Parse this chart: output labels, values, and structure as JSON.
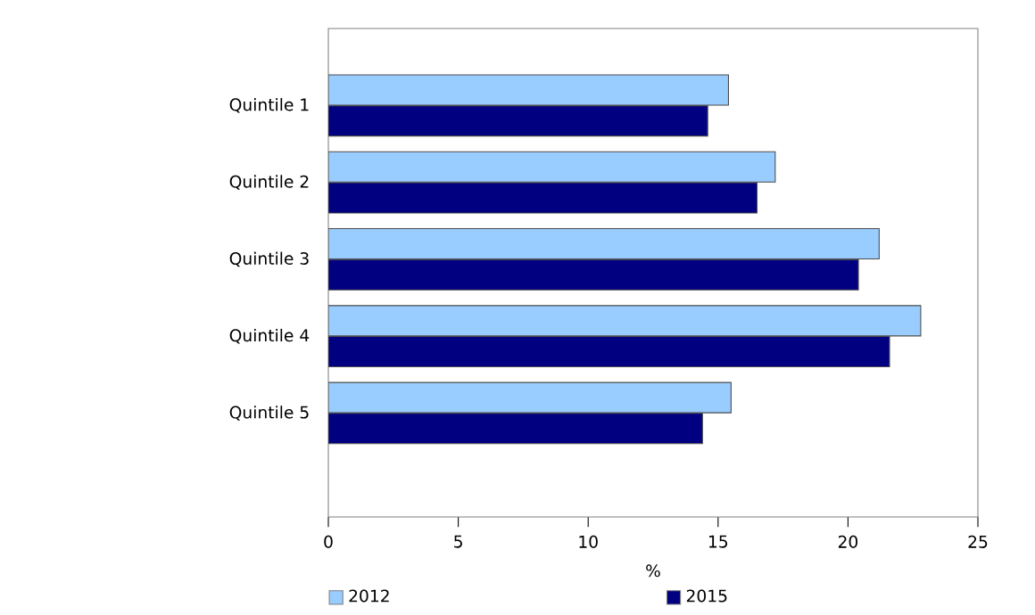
{
  "chart_data": {
    "type": "bar",
    "orientation": "horizontal",
    "xlabel": "%",
    "categories": [
      "Quintile 1",
      "Quintile 2",
      "Quintile 3",
      "Quintile 4",
      "Quintile 5"
    ],
    "series": [
      {
        "name": "2012",
        "color": "#99ccff",
        "values": [
          15.4,
          17.2,
          21.2,
          22.8,
          15.5
        ]
      },
      {
        "name": "2015",
        "color": "#000080",
        "values": [
          14.6,
          16.5,
          20.4,
          21.6,
          14.4
        ]
      }
    ],
    "xlim": [
      0,
      25
    ],
    "xticks": [
      0,
      5,
      10,
      15,
      20,
      25
    ],
    "legend": "bottom",
    "grid": false
  }
}
